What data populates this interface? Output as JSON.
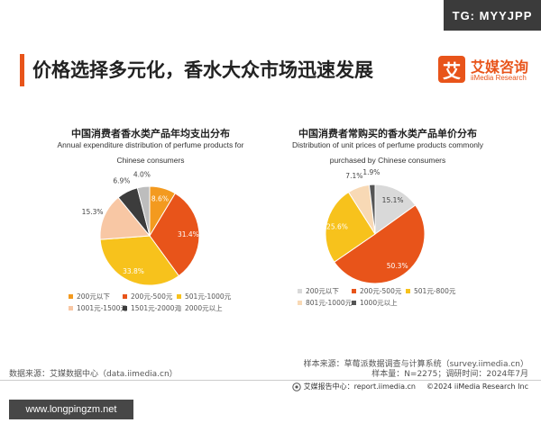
{
  "header": {
    "tg_badge": "TG: MYYJPP",
    "title": "价格选择多元化，香水大众市场迅速发展",
    "logo_mark": "艾",
    "logo_cn": "艾媒咨询",
    "logo_en": "iiMedia Research"
  },
  "chart_data": [
    {
      "type": "pie",
      "title": "中国消费者香水类产品年均支出分布",
      "subtitle": "Annual expenditure distribution of perfume products for Chinese consumers",
      "categories": [
        "200元以下",
        "200元-500元",
        "501元-1000元",
        "1001元-1500元",
        "1501元-2000元",
        "2000元以上"
      ],
      "values": [
        8.6,
        31.4,
        33.8,
        15.3,
        6.9,
        4.0
      ],
      "labels": [
        "8.6%",
        "31.4%",
        "33.8%",
        "15.3%",
        "6.9%",
        "4.0%"
      ],
      "colors": [
        "#f39a1f",
        "#e8541a",
        "#f7c21c",
        "#f8c7a4",
        "#3c3c3c",
        "#bdbdbd"
      ],
      "legend_position": "bottom"
    },
    {
      "type": "pie",
      "title": "中国消费者常购买的香水类产品单价分布",
      "subtitle": "Distribution of unit prices of perfume products commonly purchased by Chinese consumers",
      "categories": [
        "200元以下",
        "200元-500元",
        "501元-800元",
        "801元-1000元",
        "1000元以上"
      ],
      "values": [
        15.1,
        50.3,
        25.6,
        7.1,
        1.9
      ],
      "labels": [
        "15.1%",
        "50.3%",
        "25.6%",
        "7.1%",
        "1.9%"
      ],
      "colors": [
        "#d9d9d9",
        "#e8541a",
        "#f7c21c",
        "#f8d9b5",
        "#555555"
      ],
      "legend_position": "bottom"
    }
  ],
  "footer": {
    "source_left": "数据来源：艾媒数据中心（data.iimedia.cn）",
    "sample_source": "样本来源：草莓派数据调查与计算系统（survey.iimedia.cn）",
    "sample_size": "样本量：N=2275；调研时间：2024年7月",
    "report_center": "艾媒报告中心：report.iimedia.cn",
    "copyright": "©2024  iiMedia Research  Inc",
    "website": "www.longpingzm.net"
  }
}
